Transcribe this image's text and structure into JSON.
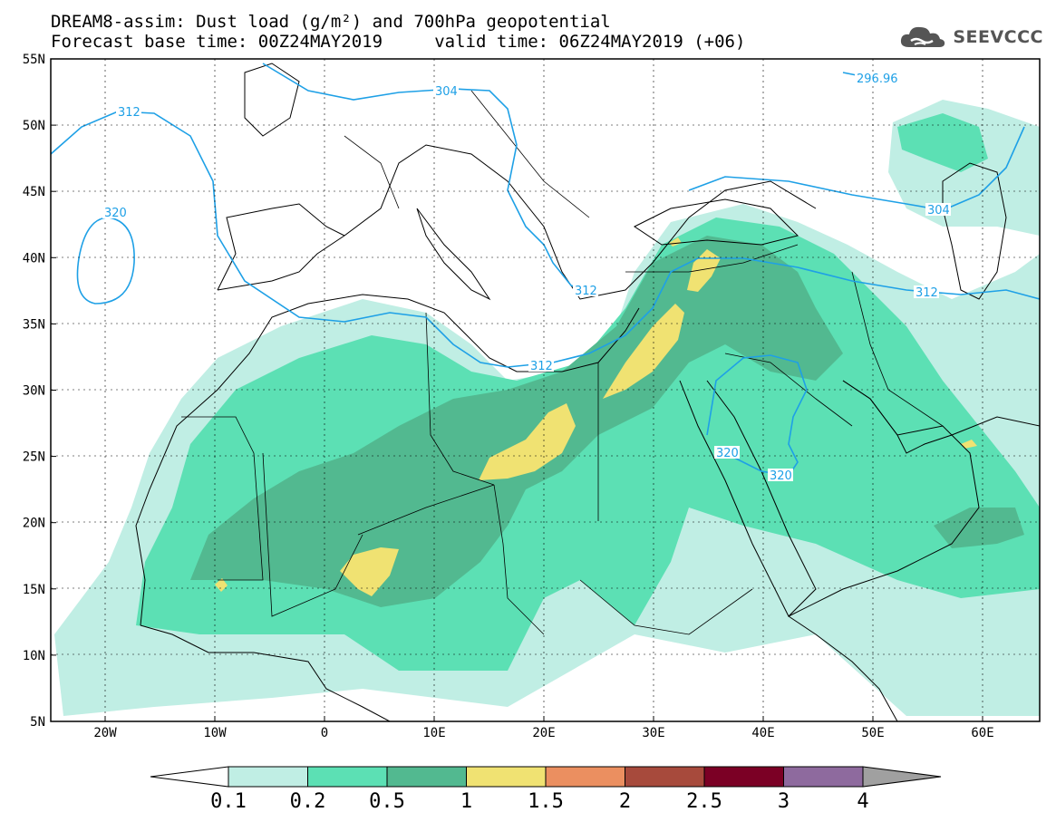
{
  "title_line1": "DREAM8-assim: Dust load (g/m²) and 700hPa geopotential",
  "title_line2": "Forecast base time: 00Z24MAY2019     valid time: 06Z24MAY2019 (+06)",
  "logo_text": "SEEVCCC",
  "lat_labels": [
    "55N",
    "50N",
    "45N",
    "40N",
    "35N",
    "30N",
    "25N",
    "20N",
    "15N",
    "10N",
    "5N"
  ],
  "lon_labels": [
    "20W",
    "10W",
    "0",
    "10E",
    "20E",
    "30E",
    "40E",
    "50E",
    "60E"
  ],
  "contour_labels": [
    "312",
    "304",
    "320",
    "296.96",
    "304",
    "312",
    "312",
    "312",
    "320",
    "320"
  ],
  "legend": {
    "colors": [
      "#c0eee4",
      "#5ce0b4",
      "#52b990",
      "#f0e272",
      "#eb8f60",
      "#a74a3c",
      "#7b0025",
      "#8e6a9e"
    ],
    "tick_labels": [
      "0.1",
      "0.2",
      "0.5",
      "1",
      "1.5",
      "2",
      "2.5",
      "3",
      "4"
    ],
    "under_color": "#ffffff",
    "over_color": "#a0a0a0"
  },
  "dust_colors": {
    "level1": "#c0eee4",
    "level2": "#5ce0b4",
    "level3": "#52b990",
    "level4": "#f0e272"
  },
  "contour_color": "#1ea0e6"
}
